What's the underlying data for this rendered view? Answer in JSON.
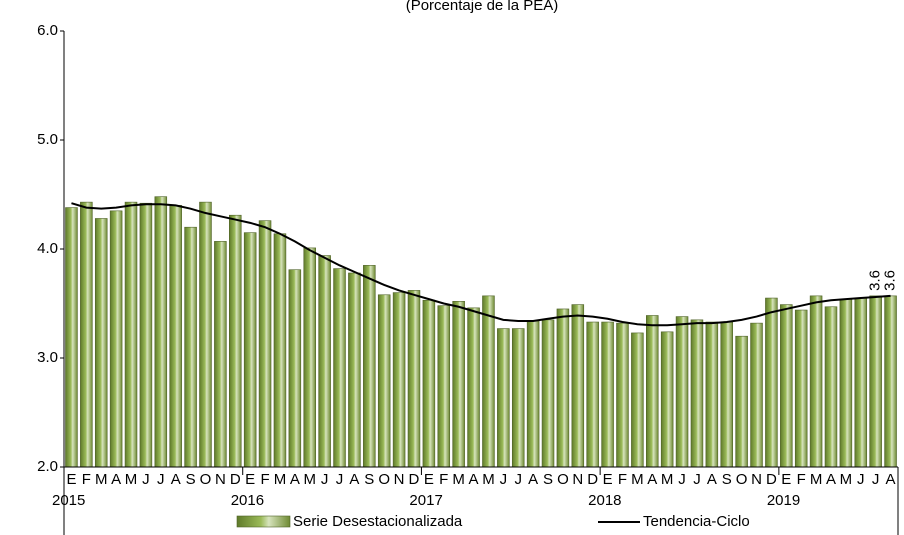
{
  "chart_data": {
    "type": "bar-line",
    "subtitle": "(Porcentaje de la PEA)",
    "categories": [
      "E",
      "F",
      "M",
      "A",
      "M",
      "J",
      "J",
      "A",
      "S",
      "O",
      "N",
      "D",
      "E",
      "F",
      "M",
      "A",
      "M",
      "J",
      "J",
      "A",
      "S",
      "O",
      "N",
      "D",
      "E",
      "F",
      "M",
      "A",
      "M",
      "J",
      "J",
      "A",
      "S",
      "O",
      "N",
      "D",
      "E",
      "F",
      "M",
      "A",
      "M",
      "J",
      "J",
      "A",
      "S",
      "O",
      "N",
      "D",
      "E",
      "F",
      "M",
      "A",
      "M",
      "J",
      "J",
      "A"
    ],
    "years": [
      "2015",
      "2016",
      "2017",
      "2018",
      "2019"
    ],
    "series": [
      {
        "name": "Serie Desestacionalizada",
        "type": "bar",
        "color": "#9bbb59",
        "values": [
          4.38,
          4.43,
          4.28,
          4.35,
          4.43,
          4.42,
          4.48,
          4.4,
          4.2,
          4.43,
          4.07,
          4.31,
          4.15,
          4.26,
          4.14,
          3.81,
          4.01,
          3.94,
          3.82,
          3.78,
          3.85,
          3.58,
          3.6,
          3.62,
          3.53,
          3.48,
          3.52,
          3.46,
          3.57,
          3.27,
          3.27,
          3.34,
          3.35,
          3.45,
          3.49,
          3.33,
          3.33,
          3.32,
          3.23,
          3.39,
          3.24,
          3.38,
          3.35,
          3.33,
          3.33,
          3.2,
          3.32,
          3.55,
          3.49,
          3.44,
          3.57,
          3.47,
          3.54,
          3.55,
          3.57,
          3.57
        ],
        "value_labels": [
          null,
          null,
          null,
          null,
          null,
          null,
          null,
          null,
          null,
          null,
          null,
          null,
          null,
          null,
          null,
          null,
          null,
          null,
          null,
          null,
          null,
          null,
          null,
          null,
          null,
          null,
          null,
          null,
          null,
          null,
          null,
          null,
          null,
          null,
          null,
          null,
          null,
          null,
          null,
          null,
          null,
          null,
          null,
          null,
          null,
          null,
          null,
          null,
          null,
          null,
          null,
          null,
          null,
          null,
          "3.6",
          "3.6"
        ]
      },
      {
        "name": "Tendencia-Ciclo",
        "type": "line",
        "color": "#000000",
        "values": [
          4.42,
          4.38,
          4.37,
          4.38,
          4.4,
          4.41,
          4.41,
          4.4,
          4.37,
          4.33,
          4.3,
          4.27,
          4.24,
          4.2,
          4.14,
          4.07,
          3.99,
          3.92,
          3.85,
          3.79,
          3.73,
          3.67,
          3.62,
          3.58,
          3.54,
          3.5,
          3.47,
          3.43,
          3.39,
          3.35,
          3.34,
          3.34,
          3.36,
          3.38,
          3.39,
          3.38,
          3.36,
          3.33,
          3.31,
          3.3,
          3.3,
          3.31,
          3.32,
          3.32,
          3.33,
          3.35,
          3.38,
          3.42,
          3.45,
          3.48,
          3.51,
          3.53,
          3.54,
          3.55,
          3.56,
          3.57
        ]
      }
    ],
    "ylim": [
      2,
      6
    ],
    "yticks": [
      {
        "value": 2,
        "label": "2.0"
      },
      {
        "value": 3,
        "label": "3.0"
      },
      {
        "value": 4,
        "label": "4.0"
      },
      {
        "value": 5,
        "label": "5.0"
      },
      {
        "value": 6,
        "label": "6.0"
      }
    ],
    "grid": false
  }
}
